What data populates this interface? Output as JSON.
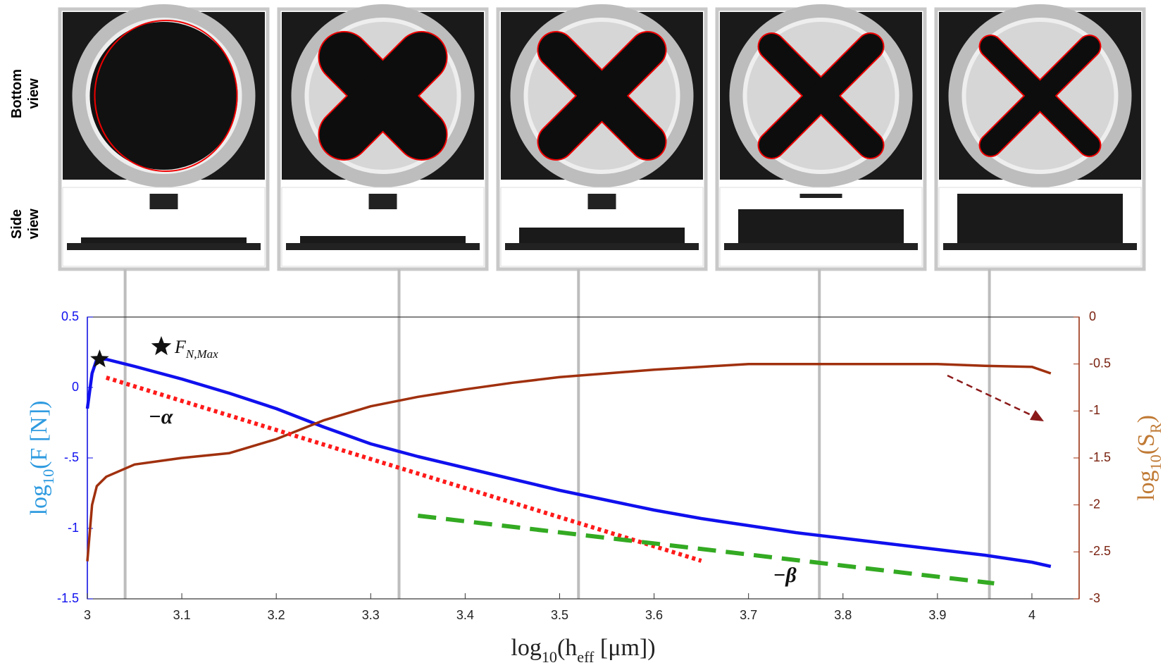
{
  "chart_data": {
    "type": "line",
    "row_labels": [
      "Bottom view",
      "Side view"
    ],
    "x": [
      3.0,
      3.005,
      3.01,
      3.02,
      3.05,
      3.1,
      3.15,
      3.2,
      3.25,
      3.3,
      3.35,
      3.4,
      3.45,
      3.5,
      3.55,
      3.6,
      3.65,
      3.7,
      3.75,
      3.8,
      3.85,
      3.9,
      3.95,
      4.0,
      4.02
    ],
    "series": [
      {
        "color": "#1010ee",
        "values": [
          -0.15,
          0.1,
          0.2,
          0.2,
          0.15,
          0.06,
          -0.04,
          -0.15,
          -0.28,
          -0.4,
          -0.49,
          -0.57,
          -0.65,
          -0.73,
          -0.8,
          -0.87,
          -0.93,
          -0.98,
          -1.03,
          -1.07,
          -1.11,
          -1.15,
          -1.19,
          -1.24,
          -1.27
        ]
      },
      {
        "color": "#a0300e",
        "axis": "y2",
        "values": [
          -2.6,
          -2.0,
          -1.8,
          -1.7,
          -1.57,
          -1.5,
          -1.45,
          -1.3,
          -1.1,
          -0.95,
          -0.85,
          -0.77,
          -0.7,
          -0.64,
          -0.6,
          -0.56,
          -0.53,
          -0.5,
          -0.5,
          -0.5,
          -0.5,
          -0.5,
          -0.52,
          -0.53,
          -0.6
        ]
      }
    ],
    "fits": [
      {
        "label": "−α",
        "color": "#ff1a1a",
        "style": "dotted",
        "x": [
          3.02,
          3.65
        ],
        "values": [
          0.07,
          -1.23
        ]
      },
      {
        "label": "−β",
        "color": "#33aa22",
        "style": "dashed",
        "x": [
          3.35,
          3.96
        ],
        "values": [
          -0.91,
          -1.39
        ]
      }
    ],
    "max_point": {
      "x": 3.013,
      "y": 0.2,
      "label": [
        {
          "text": "F"
        },
        {
          "text": "N,Max",
          "sub": true
        }
      ]
    },
    "snapshot_x": [
      3.04,
      3.33,
      3.52,
      3.775,
      3.955
    ],
    "xlabel": [
      {
        "text": "log"
      },
      {
        "text": "10",
        "sub": true
      },
      {
        "text": "(h"
      },
      {
        "text": "eff",
        "sub": true
      },
      {
        "text": " [μm])"
      }
    ],
    "ylabel": [
      {
        "text": "log"
      },
      {
        "text": "10",
        "sub": true
      },
      {
        "text": "(F [N])"
      }
    ],
    "y2label": [
      {
        "text": "log"
      },
      {
        "text": "10",
        "sub": true
      },
      {
        "text": "(S"
      },
      {
        "text": "R",
        "sub": true
      },
      {
        "text": ")"
      }
    ],
    "xlim": [
      3,
      4.05
    ],
    "xticks": [
      3,
      3.1,
      3.2,
      3.3,
      3.4,
      3.5,
      3.6,
      3.7,
      3.8,
      3.9,
      4
    ],
    "ylim": [
      -1.5,
      0.5
    ],
    "yticks": [
      0.5,
      0,
      {
        "value": -0.5,
        "label": "-.5"
      },
      -1,
      -1.5
    ],
    "y2lim": [
      -3,
      0
    ],
    "y2ticks": [
      0,
      -0.5,
      -1,
      -1.5,
      -2,
      -2.5,
      -3
    ]
  }
}
